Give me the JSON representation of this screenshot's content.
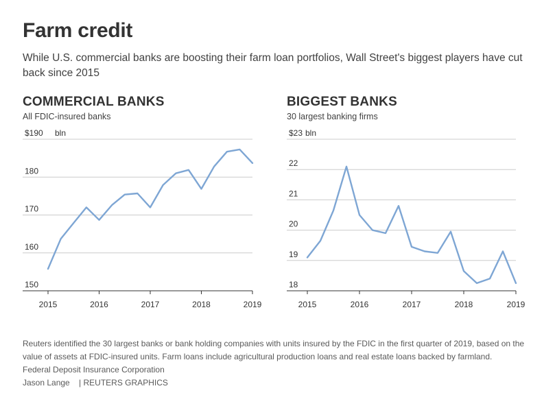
{
  "header": {
    "title": "Farm credit",
    "subtitle": "While U.S. commercial banks are boosting their farm loan portfolios, Wall Street's biggest players have cut back since 2015"
  },
  "footer": {
    "note": "Reuters identified the 30 largest banks or bank holding companies with units insured by the FDIC in the first quarter of 2019, based on the value of assets at FDIC-insured units. Farm loans include agricultural production loans and real estate loans backed by farmland.",
    "source": "Federal Deposit Insurance Corporation",
    "credit": "Jason Lange    | REUTERS GRAPHICS"
  },
  "colors": {
    "line": "#7ea6d4",
    "grid": "#cccccc",
    "axis": "#333333"
  },
  "chart_data": [
    {
      "type": "line",
      "title": "COMMERCIAL BANKS",
      "subtitle": "All FDIC-insured banks",
      "top_tick_label": "$190",
      "unit_label": "bln",
      "yticks": [
        150,
        160,
        170,
        180,
        190
      ],
      "ytick_labels": [
        "150",
        "160",
        "170",
        "180",
        "$190"
      ],
      "ylim": [
        150,
        190
      ],
      "xlim": [
        2015.0,
        2019.0
      ],
      "xticks": [
        2015,
        2016,
        2017,
        2018,
        2019
      ],
      "xtick_labels": [
        "2015",
        "2016",
        "2017",
        "2018",
        "2019"
      ],
      "grid": true,
      "series": [
        {
          "x": [
            2015.0,
            2015.25,
            2015.5,
            2015.75,
            2016.0,
            2016.25,
            2016.5,
            2016.75,
            2017.0,
            2017.25,
            2017.5,
            2017.75,
            2018.0,
            2018.25,
            2018.5,
            2018.75,
            2019.0
          ],
          "values": [
            155.8,
            163.7,
            167.9,
            172.0,
            168.7,
            172.6,
            175.4,
            175.7,
            172.0,
            177.9,
            181.0,
            181.9,
            176.9,
            182.8,
            186.7,
            187.3,
            183.7
          ]
        }
      ]
    },
    {
      "type": "line",
      "title": "BIGGEST BANKS",
      "subtitle": "30 largest banking firms",
      "top_tick_label": "$23",
      "unit_label": "bln",
      "yticks": [
        18,
        19,
        20,
        21,
        22,
        23
      ],
      "ytick_labels": [
        "18",
        "19",
        "20",
        "21",
        "22",
        "$23"
      ],
      "ylim": [
        18,
        23
      ],
      "xlim": [
        2015.0,
        2019.0
      ],
      "xticks": [
        2015,
        2016,
        2017,
        2018,
        2019
      ],
      "xtick_labels": [
        "2015",
        "2016",
        "2017",
        "2018",
        "2019"
      ],
      "grid": true,
      "series": [
        {
          "x": [
            2015.0,
            2015.25,
            2015.5,
            2015.75,
            2016.0,
            2016.25,
            2016.5,
            2016.75,
            2017.0,
            2017.25,
            2017.5,
            2017.75,
            2018.0,
            2018.25,
            2018.5,
            2018.75,
            2019.0
          ],
          "values": [
            19.1,
            19.65,
            20.65,
            22.1,
            20.5,
            20.0,
            19.9,
            20.8,
            19.45,
            19.3,
            19.25,
            19.95,
            18.65,
            18.25,
            18.4,
            19.3,
            18.25
          ]
        }
      ]
    }
  ]
}
